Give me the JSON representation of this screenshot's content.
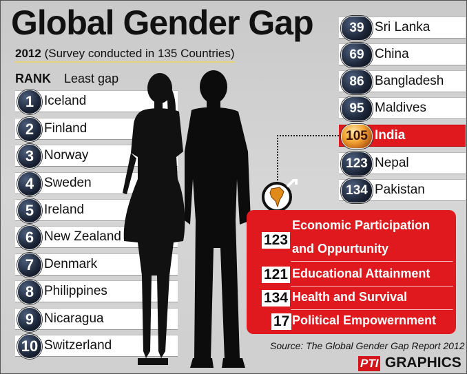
{
  "header": {
    "title": "Global Gender Gap",
    "year": "2012",
    "survey_note": "(Survey conducted in 135 Countries)"
  },
  "ranking": {
    "rank_label": "RANK",
    "least_gap_label": "Least gap",
    "least_gap": [
      {
        "rank": "1",
        "country": "Iceland"
      },
      {
        "rank": "2",
        "country": "Finland"
      },
      {
        "rank": "3",
        "country": "Norway"
      },
      {
        "rank": "4",
        "country": "Sweden"
      },
      {
        "rank": "5",
        "country": "Ireland"
      },
      {
        "rank": "6",
        "country": "New Zealand"
      },
      {
        "rank": "7",
        "country": "Denmark"
      },
      {
        "rank": "8",
        "country": "Philippines"
      },
      {
        "rank": "9",
        "country": "Nicaragua"
      },
      {
        "rank": "10",
        "country": "Switzerland"
      }
    ],
    "region": [
      {
        "rank": "39",
        "country": "Sri Lanka"
      },
      {
        "rank": "69",
        "country": "China"
      },
      {
        "rank": "86",
        "country": "Bangladesh"
      },
      {
        "rank": "95",
        "country": "Maldives"
      },
      {
        "rank": "105",
        "country": "India"
      },
      {
        "rank": "123",
        "country": "Nepal"
      },
      {
        "rank": "134",
        "country": "Pakistan"
      }
    ]
  },
  "india_breakdown": [
    {
      "rank": "123",
      "label_line1": "Economic Participation",
      "label_line2": "and Oppurtunity"
    },
    {
      "rank": "121",
      "label_line1": "Educational Attainment"
    },
    {
      "rank": "134",
      "label_line1": "Health and Survival"
    },
    {
      "rank": "17",
      "label_line1": "Political Empowernment"
    }
  ],
  "footer": {
    "source": "Source: The Global Gender Gap Report 2012",
    "credit_pti": "PTI",
    "credit_graphics": "GRAPHICS"
  },
  "colors": {
    "highlight_red": "#e0191f",
    "badge_navy": "#1b2436",
    "background_gray": "#cfcfcf"
  },
  "icons": {
    "figures": "man-and-woman-silhouette-icon",
    "gender": "gender-symbol-india-map-icon"
  }
}
